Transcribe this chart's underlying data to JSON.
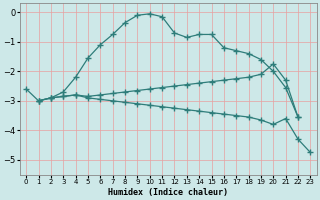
{
  "xlabel": "Humidex (Indice chaleur)",
  "bg_color": "#cde8e8",
  "grid_color": "#e8a0a0",
  "line_color": "#2e7d7a",
  "xlim": [
    -0.5,
    23.5
  ],
  "ylim": [
    -5.5,
    0.3
  ],
  "yticks": [
    0,
    -1,
    -2,
    -3,
    -4,
    -5
  ],
  "xticks": [
    0,
    1,
    2,
    3,
    4,
    5,
    6,
    7,
    8,
    9,
    10,
    11,
    12,
    13,
    14,
    15,
    16,
    17,
    18,
    19,
    20,
    21,
    22,
    23
  ],
  "s1_x": [
    0,
    1,
    2,
    3,
    4,
    5,
    6,
    7,
    8,
    9,
    10,
    11,
    12,
    13,
    14,
    15,
    16,
    17,
    18,
    19,
    20,
    21,
    22
  ],
  "s1_y": [
    -2.6,
    -3.0,
    -2.9,
    -2.7,
    -2.2,
    -1.55,
    -1.1,
    -0.75,
    -0.35,
    -0.1,
    -0.05,
    -0.15,
    -0.7,
    -0.85,
    -0.75,
    -0.75,
    -1.2,
    -1.3,
    -1.4,
    -1.6,
    -2.0,
    -2.55,
    -3.55
  ],
  "s2_x": [
    1,
    2,
    3,
    4,
    5,
    6,
    7,
    8,
    9,
    10,
    11,
    12,
    13,
    14,
    15,
    16,
    17,
    18,
    19,
    20,
    21,
    22
  ],
  "s2_y": [
    -3.0,
    -2.9,
    -2.85,
    -2.8,
    -2.85,
    -2.8,
    -2.75,
    -2.7,
    -2.65,
    -2.6,
    -2.55,
    -2.5,
    -2.45,
    -2.4,
    -2.35,
    -2.3,
    -2.25,
    -2.2,
    -2.1,
    -1.75,
    -2.3,
    -3.55
  ],
  "s3_x": [
    1,
    2,
    3,
    4,
    5,
    6,
    7,
    8,
    9,
    10,
    11,
    12,
    13,
    14,
    15,
    16,
    17,
    18,
    19,
    20,
    21,
    22,
    23
  ],
  "s3_y": [
    -3.0,
    -2.9,
    -2.85,
    -2.8,
    -2.9,
    -2.95,
    -3.0,
    -3.05,
    -3.1,
    -3.15,
    -3.2,
    -3.25,
    -3.3,
    -3.35,
    -3.4,
    -3.45,
    -3.5,
    -3.55,
    -3.65,
    -3.8,
    -3.6,
    -4.3,
    -4.75
  ]
}
